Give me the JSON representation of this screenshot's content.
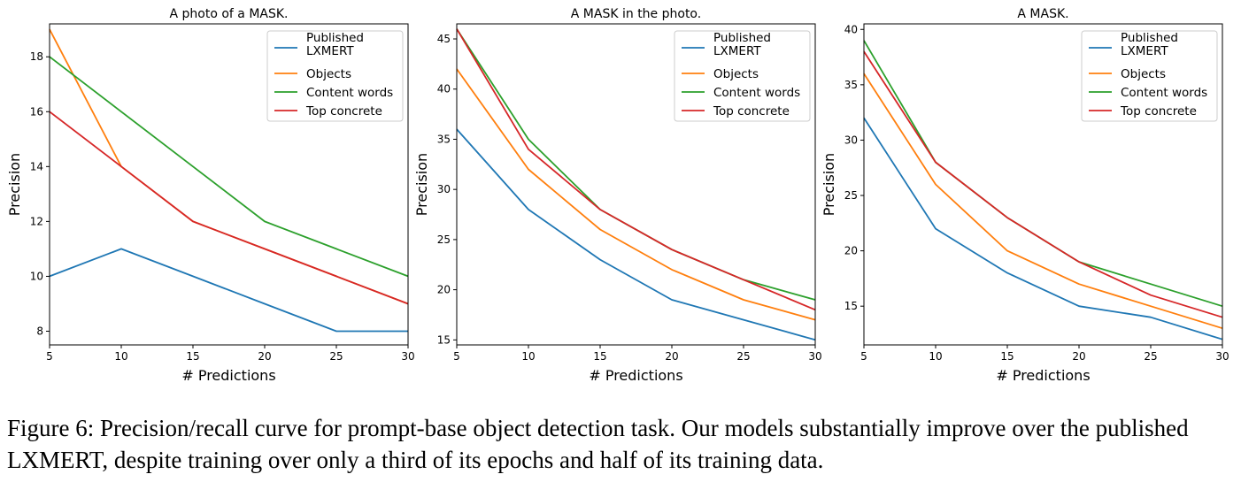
{
  "chart_data": [
    {
      "type": "line",
      "title": "A photo of a MASK.",
      "xlabel": "# Predictions",
      "ylabel": "Precision",
      "xlim": [
        5,
        30
      ],
      "ylim": [
        7.5,
        19.2
      ],
      "xticks": [
        5,
        10,
        15,
        20,
        25,
        30
      ],
      "yticks": [
        8,
        10,
        12,
        14,
        16,
        18
      ],
      "legend_position": "top-right",
      "x": [
        5,
        10,
        15,
        20,
        25,
        30
      ],
      "series": [
        {
          "name": "Published\nLXMERT",
          "color": "#1f77b4",
          "values": [
            10.0,
            11.0,
            10.0,
            9.0,
            8.0,
            8.0
          ]
        },
        {
          "name": "Objects",
          "color": "#ff7f0e",
          "values": [
            19.0,
            14.0,
            12.0,
            11.0,
            10.0,
            9.0
          ]
        },
        {
          "name": "Content words",
          "color": "#2ca02c",
          "values": [
            18.0,
            16.0,
            14.0,
            12.0,
            11.0,
            10.0
          ]
        },
        {
          "name": "Top concrete",
          "color": "#d62728",
          "values": [
            16.0,
            14.0,
            12.0,
            11.0,
            10.0,
            9.0
          ]
        }
      ]
    },
    {
      "type": "line",
      "title": "A MASK in the photo.",
      "xlabel": "# Predictions",
      "ylabel": "Precision",
      "xlim": [
        5,
        30
      ],
      "ylim": [
        14.5,
        46.5
      ],
      "xticks": [
        5,
        10,
        15,
        20,
        25,
        30
      ],
      "yticks": [
        15,
        20,
        25,
        30,
        35,
        40,
        45
      ],
      "legend_position": "top-right",
      "x": [
        5,
        10,
        15,
        20,
        25,
        30
      ],
      "series": [
        {
          "name": "Published\nLXMERT",
          "color": "#1f77b4",
          "values": [
            36.0,
            28.0,
            23.0,
            19.0,
            17.0,
            15.0
          ]
        },
        {
          "name": "Objects",
          "color": "#ff7f0e",
          "values": [
            42.0,
            32.0,
            26.0,
            22.0,
            19.0,
            17.0
          ]
        },
        {
          "name": "Content words",
          "color": "#2ca02c",
          "values": [
            46.0,
            35.0,
            28.0,
            24.0,
            21.0,
            19.0
          ]
        },
        {
          "name": "Top concrete",
          "color": "#d62728",
          "values": [
            46.0,
            34.0,
            28.0,
            24.0,
            21.0,
            18.0
          ]
        }
      ]
    },
    {
      "type": "line",
      "title": "A MASK.",
      "xlabel": "# Predictions",
      "ylabel": "Precision",
      "xlim": [
        5,
        30
      ],
      "ylim": [
        11.5,
        40.5
      ],
      "xticks": [
        5,
        10,
        15,
        20,
        25,
        30
      ],
      "yticks": [
        15,
        20,
        25,
        30,
        35,
        40
      ],
      "legend_position": "top-right",
      "x": [
        5,
        10,
        15,
        20,
        25,
        30
      ],
      "series": [
        {
          "name": "Published\nLXMERT",
          "color": "#1f77b4",
          "values": [
            32.0,
            22.0,
            18.0,
            15.0,
            14.0,
            12.0
          ]
        },
        {
          "name": "Objects",
          "color": "#ff7f0e",
          "values": [
            36.0,
            26.0,
            20.0,
            17.0,
            15.0,
            13.0
          ]
        },
        {
          "name": "Content words",
          "color": "#2ca02c",
          "values": [
            39.0,
            28.0,
            23.0,
            19.0,
            17.0,
            15.0
          ]
        },
        {
          "name": "Top concrete",
          "color": "#d62728",
          "values": [
            38.0,
            28.0,
            23.0,
            19.0,
            16.0,
            14.0
          ]
        }
      ]
    }
  ],
  "caption": "Figure 6: Precision/recall curve for prompt-base object detection task. Our models substantially improve over the published LXMERT, despite training over only a third of its epochs and half of its training data."
}
